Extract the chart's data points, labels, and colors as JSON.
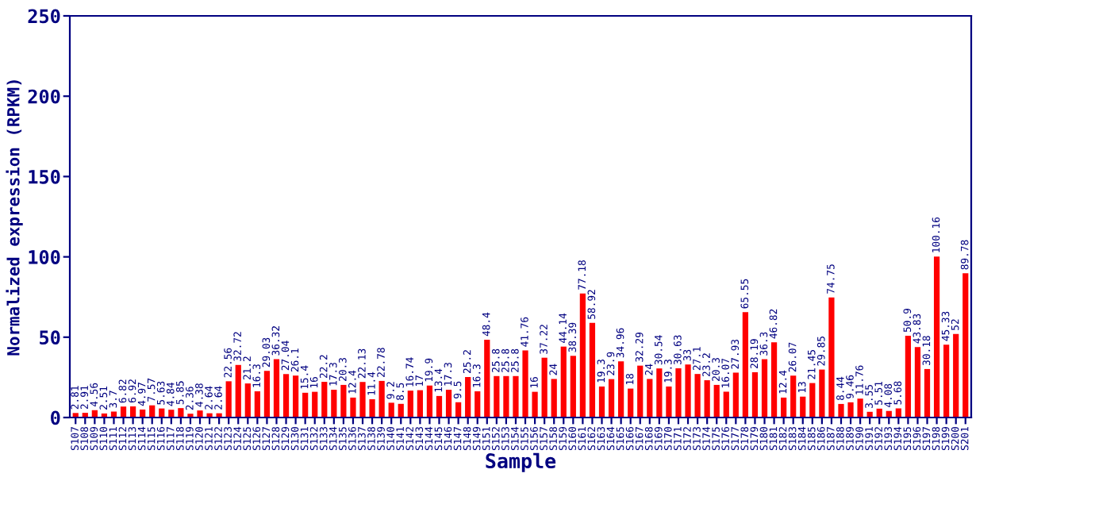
{
  "chart_data": {
    "type": "bar",
    "xlabel": "Sample",
    "ylabel": "Normalized expression (RPKM)",
    "categories": [
      "S107",
      "S108",
      "S109",
      "S110",
      "S111",
      "S112",
      "S113",
      "S114",
      "S115",
      "S116",
      "S117",
      "S118",
      "S119",
      "S120",
      "S121",
      "S122",
      "S123",
      "S124",
      "S125",
      "S126",
      "S127",
      "S128",
      "S129",
      "S130",
      "S131",
      "S132",
      "S133",
      "S134",
      "S135",
      "S136",
      "S137",
      "S138",
      "S139",
      "S140",
      "S141",
      "S142",
      "S143",
      "S144",
      "S145",
      "S146",
      "S147",
      "S148",
      "S149",
      "S151",
      "S152",
      "S153",
      "S154",
      "S155",
      "S156",
      "S157",
      "S158",
      "S159",
      "S160",
      "S161",
      "S162",
      "S163",
      "S164",
      "S165",
      "S166",
      "S167",
      "S168",
      "S169",
      "S170",
      "S171",
      "S172",
      "S173",
      "S174",
      "S175",
      "S176",
      "S177",
      "S178",
      "S179",
      "S180",
      "S181",
      "S182",
      "S183",
      "S184",
      "S185",
      "S186",
      "S187",
      "S188",
      "S189",
      "S190",
      "S191",
      "S192",
      "S193",
      "S194",
      "S195",
      "S196",
      "S197",
      "S198",
      "S199",
      "S200",
      "S201"
    ],
    "values": [
      2.81,
      2.91,
      4.56,
      2.51,
      3.7,
      6.82,
      6.92,
      4.97,
      7.57,
      5.63,
      4.84,
      5.85,
      2.36,
      4.38,
      2.64,
      2.64,
      22.56,
      32.72,
      21.2,
      16.3,
      29.03,
      36.32,
      27.04,
      26.1,
      15.4,
      16,
      22.2,
      17.3,
      20.3,
      12.4,
      22.13,
      11.4,
      22.78,
      9.2,
      8.5,
      16.74,
      17,
      19.9,
      13.4,
      17.3,
      9.5,
      25.2,
      16.3,
      48.4,
      25.8,
      25.8,
      25.8,
      41.76,
      16,
      37.22,
      24,
      44.14,
      38.39,
      77.18,
      58.92,
      19.3,
      23.9,
      34.96,
      18,
      32.29,
      24,
      30.54,
      19.3,
      30.63,
      33,
      27.1,
      23.2,
      20.3,
      16.07,
      27.93,
      65.55,
      28.19,
      36.3,
      46.82,
      12.4,
      26.07,
      13,
      21.45,
      29.85,
      74.75,
      8.44,
      9.46,
      11.76,
      3.55,
      5.51,
      4.08,
      5.68,
      50.9,
      43.83,
      30.18,
      100.16,
      45.33,
      52,
      89.78
    ],
    "color": "#ff0000",
    "ylim": [
      0,
      250
    ],
    "yticks": [
      0,
      50,
      100,
      150,
      200,
      250
    ],
    "data_labels": true,
    "grid": false,
    "legend": false
  }
}
